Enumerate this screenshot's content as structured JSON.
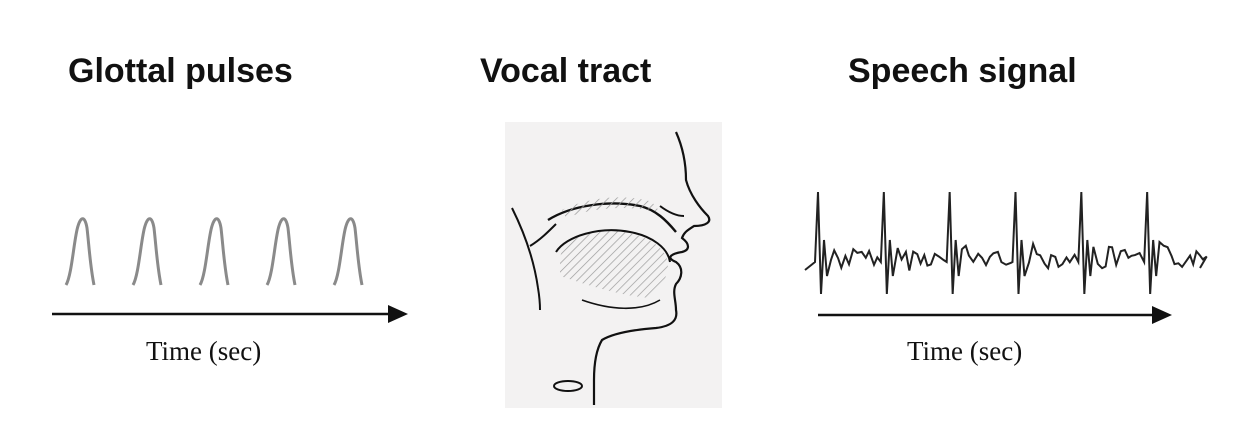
{
  "titles": {
    "glottal": "Glottal pulses",
    "vocal": "Vocal tract",
    "speech": "Speech signal"
  },
  "axis": {
    "glottal_time_label": "Time (sec)",
    "speech_time_label": "Time (sec)"
  },
  "glottal_pulse_count": 5,
  "speech_periods": 6,
  "colors": {
    "ink": "#111111",
    "pulse": "#8a8a8a",
    "panel": "#f3f2f2",
    "hatch": "#9a9a9a"
  }
}
